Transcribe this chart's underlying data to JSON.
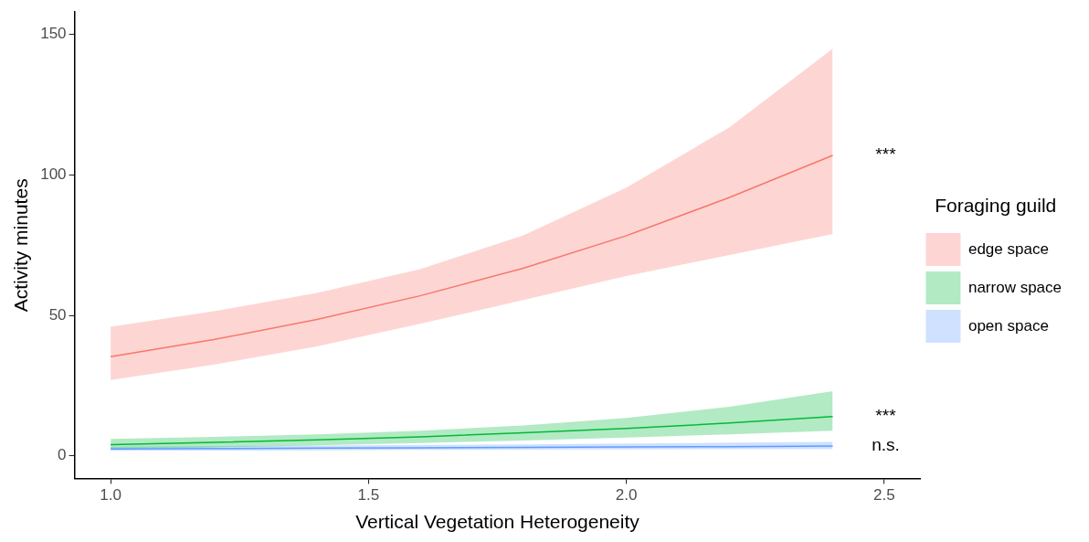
{
  "chart_data": {
    "type": "line",
    "xlabel": "Vertical Vegetation Heterogeneity",
    "ylabel": "Activity minutes",
    "legend_title": "Foraging guild",
    "legend": "right",
    "grid": false,
    "marker": "none",
    "x": [
      1.0,
      1.2,
      1.4,
      1.6,
      1.8,
      2.0,
      2.2,
      2.4
    ],
    "xlim": [
      0.93,
      2.57
    ],
    "xticks": [
      {
        "value": 1.0,
        "label": "1.0"
      },
      1.5,
      {
        "value": 2.0,
        "label": "2.0"
      },
      2.5
    ],
    "ylim": [
      -8,
      158
    ],
    "yticks": [
      0,
      50,
      100,
      150
    ],
    "series": [
      {
        "name": "edge space",
        "color": "#f8766d",
        "values": [
          35.3,
          41.4,
          48.6,
          57,
          66.8,
          78.4,
          92,
          107
        ],
        "lower": [
          27,
          32.5,
          39,
          47,
          55.5,
          64,
          71.5,
          79
        ],
        "upper": [
          46,
          51.5,
          58,
          66.5,
          78.5,
          95.5,
          117,
          145
        ]
      },
      {
        "name": "narrow space",
        "color": "#00ba38",
        "values": [
          4,
          4.8,
          5.7,
          6.8,
          8.2,
          9.8,
          11.7,
          14
        ],
        "lower": [
          2.5,
          3,
          3.8,
          4.6,
          5.5,
          6.5,
          7.7,
          9
        ],
        "upper": [
          6,
          6.8,
          7.7,
          9,
          10.8,
          13.5,
          17.5,
          23
        ]
      },
      {
        "name": "open space",
        "color": "#619cff",
        "values": [
          2.5,
          2.6,
          2.8,
          2.9,
          3.0,
          3.2,
          3.3,
          3.5
        ],
        "lower": [
          1.8,
          1.9,
          2.0,
          2.1,
          2.2,
          2.3,
          2.4,
          2.5
        ],
        "upper": [
          3.3,
          3.5,
          3.7,
          3.9,
          4.1,
          4.4,
          4.7,
          5
        ]
      }
    ],
    "annotations": [
      "***",
      "***",
      "n.s."
    ]
  }
}
